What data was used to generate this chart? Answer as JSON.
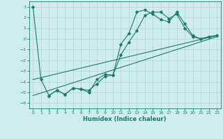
{
  "xlabel": "Humidex (Indice chaleur)",
  "line2_x": [
    0,
    1,
    2,
    3,
    4,
    5,
    6,
    7,
    8,
    9,
    10,
    11,
    12,
    13,
    14,
    15,
    16,
    17,
    18,
    19,
    20,
    21,
    22,
    23
  ],
  "line2_y": [
    3.0,
    -3.8,
    -5.3,
    -4.8,
    -5.2,
    -4.6,
    -4.7,
    -5.0,
    -3.8,
    -3.3,
    -3.4,
    -0.5,
    0.5,
    2.5,
    2.7,
    2.3,
    1.8,
    1.6,
    2.5,
    1.4,
    0.3,
    0.0,
    0.2,
    0.3
  ],
  "line3_x": [
    2,
    3,
    4,
    5,
    6,
    7,
    8,
    9,
    10,
    11,
    12,
    13,
    14,
    15,
    16,
    17,
    18,
    19,
    20,
    21,
    22,
    23
  ],
  "line3_y": [
    -5.3,
    -4.8,
    -5.2,
    -4.6,
    -4.7,
    -4.8,
    -4.2,
    -3.5,
    -3.4,
    -1.5,
    -0.3,
    0.8,
    2.2,
    2.5,
    2.5,
    1.9,
    2.3,
    1.0,
    0.2,
    0.0,
    0.2,
    0.3
  ],
  "line4_x": [
    0,
    23
  ],
  "line4_y": [
    -3.8,
    0.3
  ],
  "line5_x": [
    0,
    23
  ],
  "line5_y": [
    -5.3,
    0.2
  ],
  "color": "#1a7a6e",
  "bg_color": "#d0eded",
  "grid_color": "#b8d8d8",
  "ylim": [
    -6.5,
    3.5
  ],
  "xlim": [
    -0.5,
    23.5
  ],
  "yticks": [
    -6,
    -5,
    -4,
    -3,
    -2,
    -1,
    0,
    1,
    2,
    3
  ],
  "xticks": [
    0,
    1,
    2,
    3,
    4,
    5,
    6,
    7,
    8,
    9,
    10,
    11,
    12,
    13,
    14,
    15,
    16,
    17,
    18,
    19,
    20,
    21,
    22,
    23
  ]
}
